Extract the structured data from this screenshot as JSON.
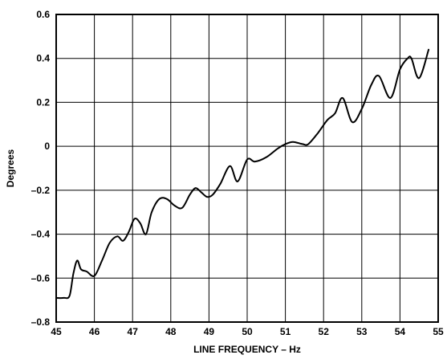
{
  "chart_data": {
    "type": "line",
    "title": "",
    "xlabel": "LINE FREQUENCY – Hz",
    "ylabel": "Degrees",
    "xlim": [
      45,
      55
    ],
    "ylim": [
      -0.8,
      0.6
    ],
    "x_ticks": [
      45,
      46,
      47,
      48,
      49,
      50,
      51,
      52,
      53,
      54,
      55
    ],
    "x_tick_labels": [
      "45",
      "46",
      "47",
      "48",
      "49",
      "50",
      "51",
      "52",
      "53",
      "54",
      "55"
    ],
    "y_ticks": [
      0.6,
      0.4,
      0.2,
      0,
      -0.2,
      -0.4,
      -0.6,
      -0.8
    ],
    "y_tick_labels": [
      "0.6",
      "0.4",
      "0.2",
      "0",
      "–0.2",
      "–0.4",
      "–0.6",
      "–0.8"
    ],
    "grid": true,
    "line_color": "#000000",
    "series": [
      {
        "x": [
          45.0,
          45.2,
          45.35,
          45.45,
          45.55,
          45.65,
          45.8,
          46.0,
          46.2,
          46.4,
          46.6,
          46.75,
          46.9,
          47.05,
          47.2,
          47.35,
          47.5,
          47.7,
          47.9,
          48.1,
          48.3,
          48.5,
          48.65,
          48.8,
          48.95,
          49.1,
          49.3,
          49.55,
          49.75,
          50.0,
          50.2,
          50.5,
          50.8,
          51.0,
          51.2,
          51.45,
          51.6,
          51.85,
          52.1,
          52.3,
          52.5,
          52.75,
          53.0,
          53.25,
          53.45,
          53.75,
          54.0,
          54.2,
          54.3,
          54.5,
          54.75
        ],
        "y": [
          -0.69,
          -0.69,
          -0.68,
          -0.58,
          -0.52,
          -0.56,
          -0.57,
          -0.59,
          -0.52,
          -0.44,
          -0.41,
          -0.43,
          -0.39,
          -0.33,
          -0.35,
          -0.4,
          -0.3,
          -0.24,
          -0.24,
          -0.27,
          -0.28,
          -0.22,
          -0.19,
          -0.21,
          -0.23,
          -0.22,
          -0.17,
          -0.09,
          -0.16,
          -0.06,
          -0.07,
          -0.05,
          -0.01,
          0.01,
          0.02,
          0.01,
          0.01,
          0.06,
          0.12,
          0.15,
          0.22,
          0.11,
          0.17,
          0.28,
          0.32,
          0.22,
          0.35,
          0.4,
          0.4,
          0.31,
          0.44
        ]
      }
    ]
  }
}
